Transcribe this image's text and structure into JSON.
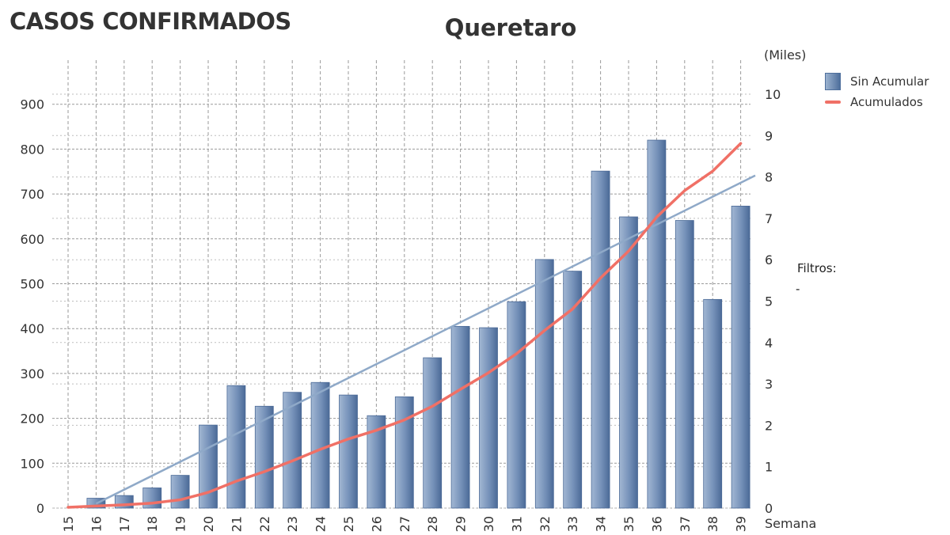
{
  "header": {
    "title": "CASOS CONFIRMADOS"
  },
  "chart_data": {
    "type": "bar",
    "title": "Queretaro",
    "xlabel": "Semana",
    "y2_units_label": "(Miles)",
    "categories": [
      "15",
      "16",
      "17",
      "18",
      "19",
      "20",
      "21",
      "22",
      "23",
      "24",
      "25",
      "26",
      "27",
      "28",
      "29",
      "30",
      "31",
      "32",
      "33",
      "34",
      "35",
      "36",
      "37",
      "38",
      "39"
    ],
    "series": [
      {
        "name": "Sin Acumular",
        "type": "bar",
        "axis": "left",
        "color": "#5b7ba8",
        "values": [
          0,
          22,
          28,
          45,
          73,
          185,
          273,
          227,
          258,
          280,
          252,
          206,
          248,
          335,
          405,
          402,
          460,
          554,
          528,
          751,
          649,
          820,
          641,
          465,
          673
        ]
      },
      {
        "name": "Acumulados",
        "type": "line",
        "axis": "right",
        "units": "Miles",
        "color": "#f07066",
        "values": [
          0.02,
          0.05,
          0.08,
          0.12,
          0.2,
          0.38,
          0.65,
          0.88,
          1.14,
          1.42,
          1.67,
          1.88,
          2.13,
          2.46,
          2.87,
          3.27,
          3.73,
          4.29,
          4.81,
          5.56,
          6.21,
          7.03,
          7.67,
          8.14,
          8.81
        ]
      },
      {
        "type": "trend",
        "axis": "left",
        "color": "#8fa9c8",
        "start": {
          "x": "16",
          "value": 10
        },
        "end": {
          "x": "39",
          "value": 725
        }
      }
    ],
    "ylim": [
      0,
      950
    ],
    "yticks": [
      0,
      100,
      200,
      300,
      400,
      500,
      600,
      700,
      800,
      900
    ],
    "y2lim": [
      0,
      10.5
    ],
    "y2ticks": [
      0,
      1,
      2,
      3,
      4,
      5,
      6,
      7,
      8,
      9,
      10
    ],
    "grid": true,
    "legend_position": "top-right"
  },
  "filters": {
    "label": "Filtros:",
    "value": "-"
  }
}
